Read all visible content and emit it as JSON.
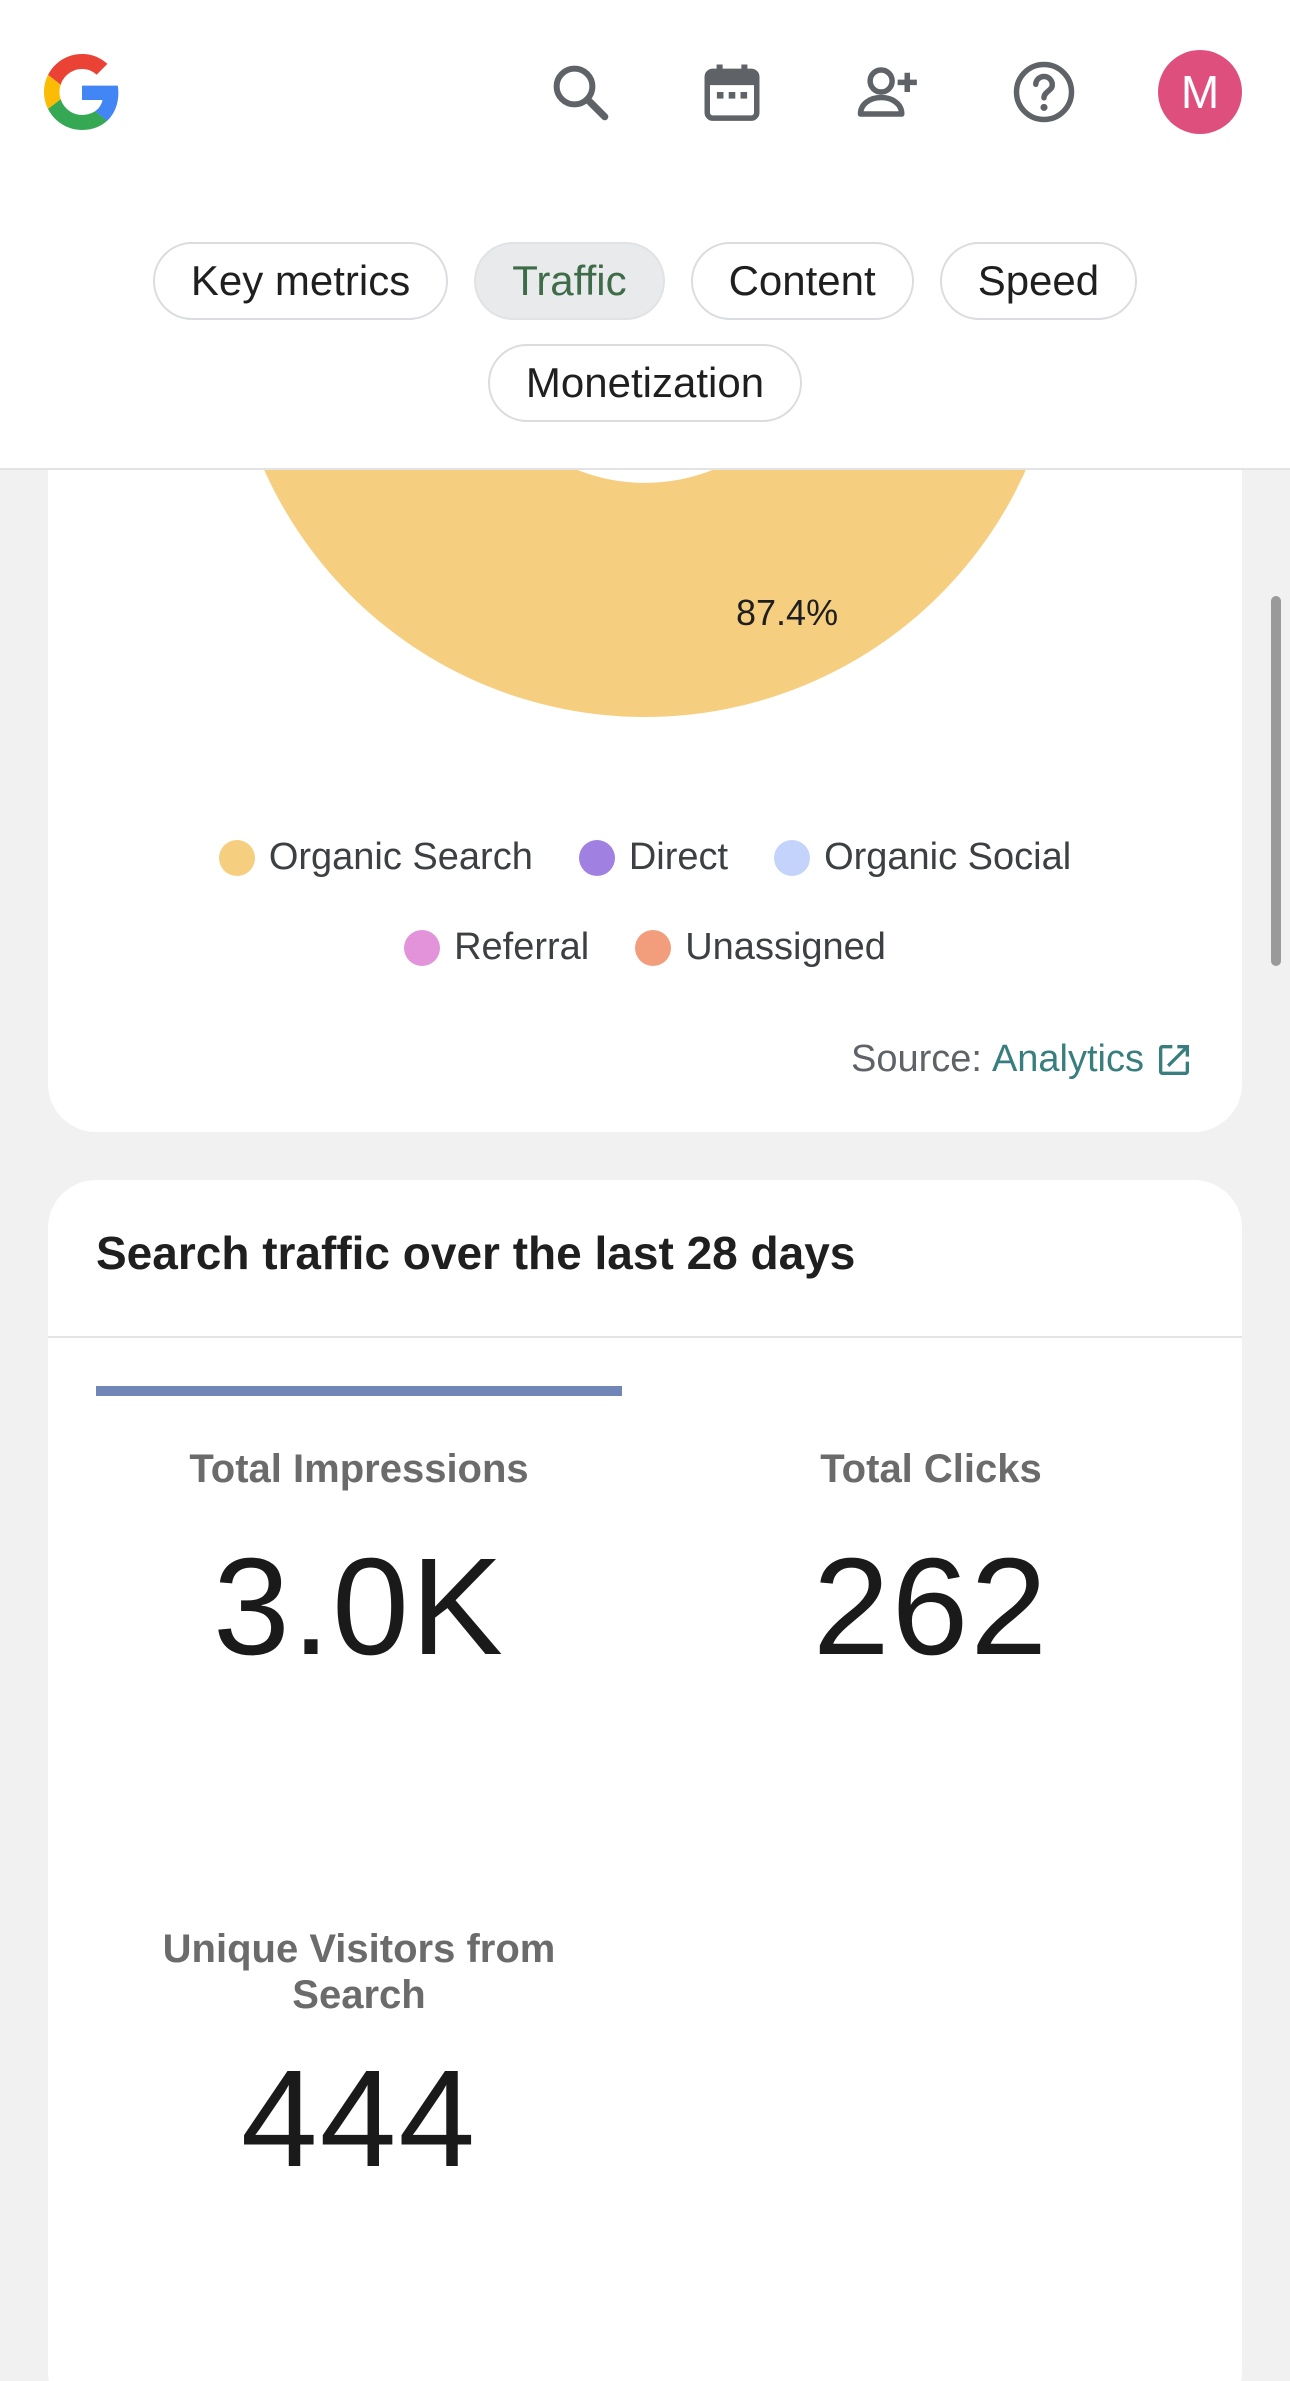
{
  "header": {
    "avatar_initial": "M",
    "icons": [
      "google-logo",
      "search-icon",
      "calendar-icon",
      "add-person-icon",
      "help-icon"
    ]
  },
  "tabs": [
    {
      "label": "Key metrics",
      "active": false
    },
    {
      "label": "Traffic",
      "active": true
    },
    {
      "label": "Content",
      "active": false
    },
    {
      "label": "Speed",
      "active": false
    },
    {
      "label": "Monetization",
      "active": false
    }
  ],
  "traffic_chart": {
    "percent_label": "87.4%",
    "legend": [
      {
        "label": "Organic Search",
        "color": "#f6ce80"
      },
      {
        "label": "Direct",
        "color": "#a081e2"
      },
      {
        "label": "Organic Social",
        "color": "#c4d3fb"
      },
      {
        "label": "Referral",
        "color": "#e393d9"
      },
      {
        "label": "Unassigned",
        "color": "#f29d7c"
      }
    ],
    "source_prefix": "Source:",
    "source_link": "Analytics"
  },
  "chart_data": {
    "type": "pie",
    "labels": [
      "Organic Search",
      "Direct",
      "Organic Social",
      "Referral",
      "Unassigned"
    ],
    "data_labels": [
      "87.4%"
    ],
    "colors": [
      "#f6ce80",
      "#a081e2",
      "#c4d3fb",
      "#e393d9",
      "#f29d7c"
    ]
  },
  "search_traffic": {
    "title": "Search traffic over the last 28 days",
    "metrics": [
      {
        "label": "Total Impressions",
        "value": "3.0K"
      },
      {
        "label": "Total Clicks",
        "value": "262"
      },
      {
        "label": "Unique Visitors from Search",
        "value": "444"
      }
    ]
  }
}
